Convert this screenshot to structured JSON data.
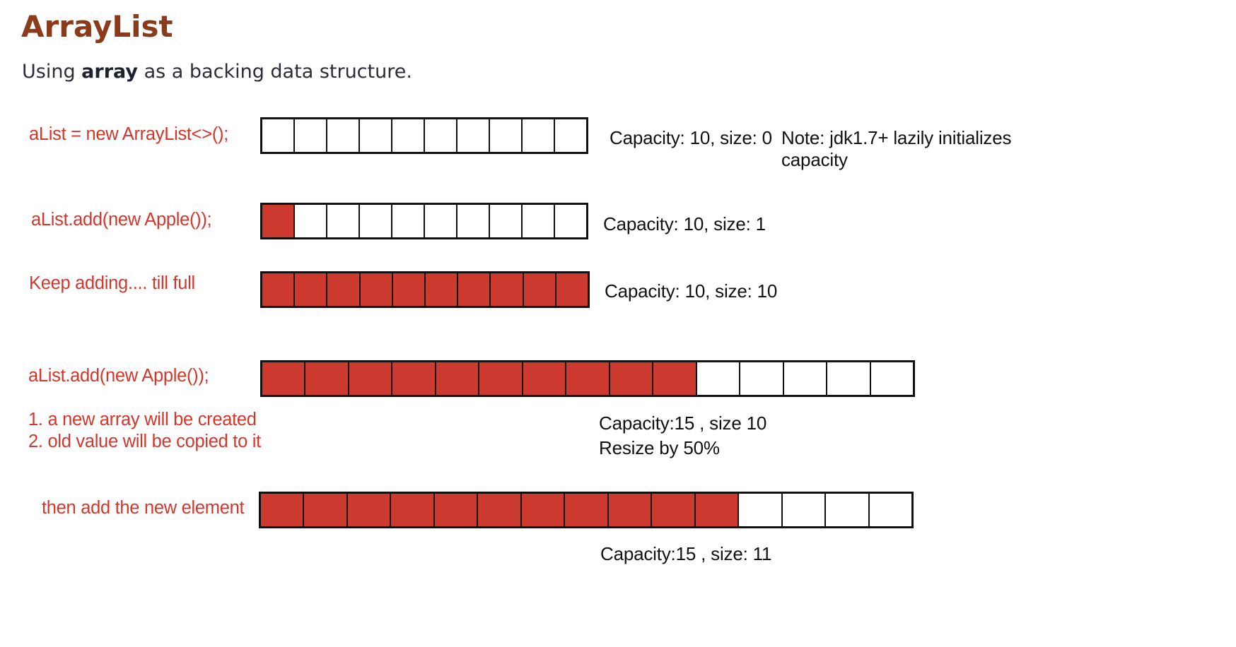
{
  "heading": {
    "title": "ArrayList",
    "subtitle_before": "Using ",
    "subtitle_bold": "array",
    "subtitle_after": " as a backing data structure."
  },
  "colors": {
    "title": "#8b3a1a",
    "label_red": "#d5362c",
    "filled_cell": "#cd3a2f",
    "empty_cell": "#ffffff"
  },
  "steps": [
    {
      "code": "aList =  new ArrayList<>();",
      "capacity": 10,
      "size": 0,
      "status": "Capacity: 10, size: 0",
      "note": "Note: jdk1.7+ lazily initializes",
      "note_cont": "capacity"
    },
    {
      "code": "aList.add(new Apple());",
      "capacity": 10,
      "size": 1,
      "status": "Capacity: 10, size: 1"
    },
    {
      "code": "Keep adding....   till full",
      "capacity": 10,
      "size": 10,
      "status": "Capacity: 10, size: 10"
    },
    {
      "code": "aList.add(new Apple());",
      "explanation": [
        "1. a new array  will be created",
        "2. old value will be copied to it"
      ],
      "capacity": 15,
      "size": 10,
      "status": "Capacity:15 , size 10",
      "status_line2": "Resize by 50%"
    },
    {
      "code": "then add the new element",
      "capacity": 15,
      "size": 11,
      "status": "Capacity:15 , size: 11"
    }
  ]
}
